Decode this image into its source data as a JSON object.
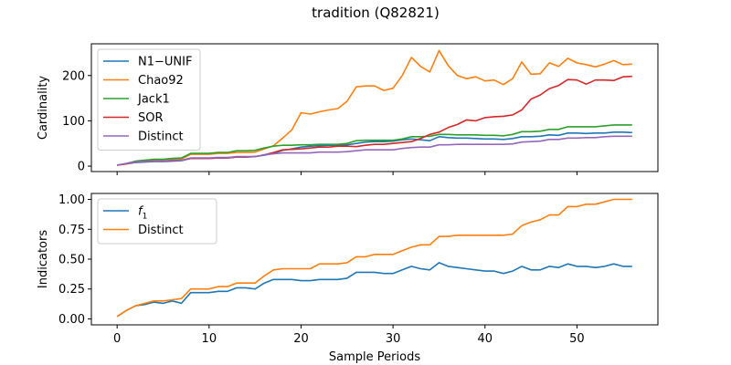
{
  "figure": {
    "title": "tradition (Q82821)"
  },
  "colors": {
    "N1-UNIF": "#1f77b4",
    "Chao92": "#ff7f0e",
    "Jack1": "#2ca02c",
    "SOR": "#d62728",
    "Distinct": "#9467bd"
  },
  "chart_data": [
    {
      "type": "line",
      "title": "",
      "xlabel": "",
      "ylabel": "Cardinality",
      "xlim": [
        -2.8,
        58.8
      ],
      "ylim": [
        -12,
        270
      ],
      "xticks": [
        0,
        10,
        20,
        30,
        40,
        50
      ],
      "xticklabels": [
        "",
        "",
        "",
        "",
        "",
        ""
      ],
      "yticks": [
        0,
        100,
        200
      ],
      "yticklabels": [
        "0",
        "100",
        "200"
      ],
      "legend_position": "upper-left",
      "x": [
        0,
        1,
        2,
        3,
        4,
        5,
        6,
        7,
        8,
        9,
        10,
        11,
        12,
        13,
        14,
        15,
        16,
        17,
        18,
        19,
        20,
        21,
        22,
        23,
        24,
        25,
        26,
        27,
        28,
        29,
        30,
        31,
        32,
        33,
        34,
        35,
        36,
        37,
        38,
        39,
        40,
        41,
        42,
        43,
        44,
        45,
        46,
        47,
        48,
        49,
        50,
        51,
        52,
        53,
        54,
        55,
        56
      ],
      "series": [
        {
          "name": "N1−UNIF",
          "color": "#1f77b4",
          "values": [
            2,
            5,
            8,
            9,
            10,
            10,
            11,
            12,
            17,
            17,
            17,
            18,
            18,
            20,
            20,
            21,
            24,
            28,
            35,
            38,
            42,
            44,
            45,
            46,
            46,
            47,
            50,
            53,
            54,
            54,
            55,
            58,
            60,
            58,
            56,
            65,
            63,
            62,
            62,
            61,
            60,
            60,
            59,
            61,
            65,
            65,
            66,
            69,
            68,
            73,
            73,
            72,
            73,
            73,
            75,
            75,
            74
          ]
        },
        {
          "name": "Chao92",
          "color": "#ff7f0e",
          "values": [
            2,
            5,
            10,
            12,
            14,
            14,
            15,
            16,
            26,
            26,
            26,
            28,
            28,
            30,
            30,
            31,
            38,
            45,
            62,
            80,
            118,
            115,
            120,
            124,
            127,
            143,
            175,
            177,
            177,
            167,
            172,
            200,
            240,
            220,
            208,
            255,
            222,
            200,
            193,
            197,
            188,
            190,
            180,
            193,
            230,
            203,
            204,
            228,
            220,
            238,
            228,
            224,
            219,
            225,
            233,
            224,
            225
          ]
        },
        {
          "name": "Jack1",
          "color": "#2ca02c",
          "values": [
            2,
            6,
            11,
            13,
            15,
            15,
            17,
            18,
            28,
            28,
            28,
            30,
            30,
            34,
            34,
            35,
            40,
            44,
            46,
            46,
            47,
            47,
            48,
            48,
            48,
            50,
            56,
            57,
            57,
            57,
            57,
            60,
            65,
            65,
            66,
            70,
            70,
            69,
            69,
            69,
            68,
            68,
            67,
            70,
            76,
            76,
            77,
            81,
            81,
            87,
            87,
            87,
            87,
            89,
            91,
            91,
            91
          ]
        },
        {
          "name": "SOR",
          "color": "#d62728",
          "values": [
            2,
            5,
            9,
            10,
            11,
            11,
            12,
            13,
            17,
            17,
            17,
            18,
            18,
            20,
            20,
            21,
            25,
            30,
            36,
            37,
            38,
            40,
            42,
            42,
            44,
            44,
            43,
            46,
            48,
            48,
            50,
            52,
            54,
            61,
            70,
            75,
            85,
            92,
            102,
            100,
            107,
            109,
            110,
            113,
            124,
            148,
            157,
            171,
            178,
            191,
            190,
            181,
            190,
            190,
            189,
            197,
            198
          ]
        },
        {
          "name": "Distinct",
          "color": "#9467bd",
          "values": [
            2,
            6,
            9,
            10,
            11,
            11,
            13,
            13,
            18,
            18,
            18,
            19,
            19,
            21,
            21,
            21,
            25,
            27,
            29,
            29,
            29,
            29,
            31,
            31,
            31,
            32,
            34,
            36,
            36,
            36,
            36,
            39,
            41,
            42,
            42,
            47,
            47,
            48,
            48,
            48,
            48,
            48,
            48,
            49,
            53,
            54,
            55,
            59,
            59,
            62,
            62,
            63,
            63,
            65,
            66,
            66,
            66
          ]
        }
      ]
    },
    {
      "type": "line",
      "title": "",
      "xlabel": "Sample Periods",
      "ylabel": "Indicators",
      "xlim": [
        -2.8,
        58.8
      ],
      "ylim": [
        -0.05,
        1.05
      ],
      "xticks": [
        0,
        10,
        20,
        30,
        40,
        50
      ],
      "xticklabels": [
        "0",
        "10",
        "20",
        "30",
        "40",
        "50"
      ],
      "yticks": [
        0.0,
        0.25,
        0.5,
        0.75,
        1.0
      ],
      "yticklabels": [
        "0.00",
        "0.25",
        "0.50",
        "0.75",
        "1.00"
      ],
      "legend_position": "upper-left",
      "x": [
        0,
        1,
        2,
        3,
        4,
        5,
        6,
        7,
        8,
        9,
        10,
        11,
        12,
        13,
        14,
        15,
        16,
        17,
        18,
        19,
        20,
        21,
        22,
        23,
        24,
        25,
        26,
        27,
        28,
        29,
        30,
        31,
        32,
        33,
        34,
        35,
        36,
        37,
        38,
        39,
        40,
        41,
        42,
        43,
        44,
        45,
        46,
        47,
        48,
        49,
        50,
        51,
        52,
        53,
        54,
        55,
        56
      ],
      "series": [
        {
          "name": "f",
          "name_sub": "1",
          "color": "#1f77b4",
          "values": [
            0.02,
            0.07,
            0.11,
            0.12,
            0.14,
            0.13,
            0.15,
            0.13,
            0.22,
            0.22,
            0.22,
            0.23,
            0.23,
            0.26,
            0.26,
            0.25,
            0.3,
            0.33,
            0.33,
            0.33,
            0.32,
            0.32,
            0.33,
            0.33,
            0.33,
            0.34,
            0.39,
            0.39,
            0.39,
            0.38,
            0.38,
            0.41,
            0.44,
            0.42,
            0.41,
            0.47,
            0.44,
            0.43,
            0.42,
            0.41,
            0.4,
            0.4,
            0.38,
            0.4,
            0.44,
            0.41,
            0.41,
            0.44,
            0.43,
            0.46,
            0.44,
            0.44,
            0.43,
            0.44,
            0.46,
            0.44,
            0.44
          ]
        },
        {
          "name": "Distinct",
          "color": "#ff7f0e",
          "values": [
            0.02,
            0.07,
            0.11,
            0.13,
            0.15,
            0.15,
            0.16,
            0.17,
            0.25,
            0.25,
            0.25,
            0.27,
            0.27,
            0.3,
            0.3,
            0.3,
            0.36,
            0.41,
            0.42,
            0.42,
            0.42,
            0.42,
            0.46,
            0.46,
            0.46,
            0.47,
            0.52,
            0.52,
            0.54,
            0.54,
            0.54,
            0.57,
            0.6,
            0.62,
            0.62,
            0.69,
            0.69,
            0.7,
            0.7,
            0.7,
            0.7,
            0.7,
            0.7,
            0.71,
            0.78,
            0.81,
            0.83,
            0.87,
            0.87,
            0.94,
            0.94,
            0.96,
            0.96,
            0.98,
            1.0,
            1.0,
            1.0
          ]
        }
      ]
    }
  ]
}
